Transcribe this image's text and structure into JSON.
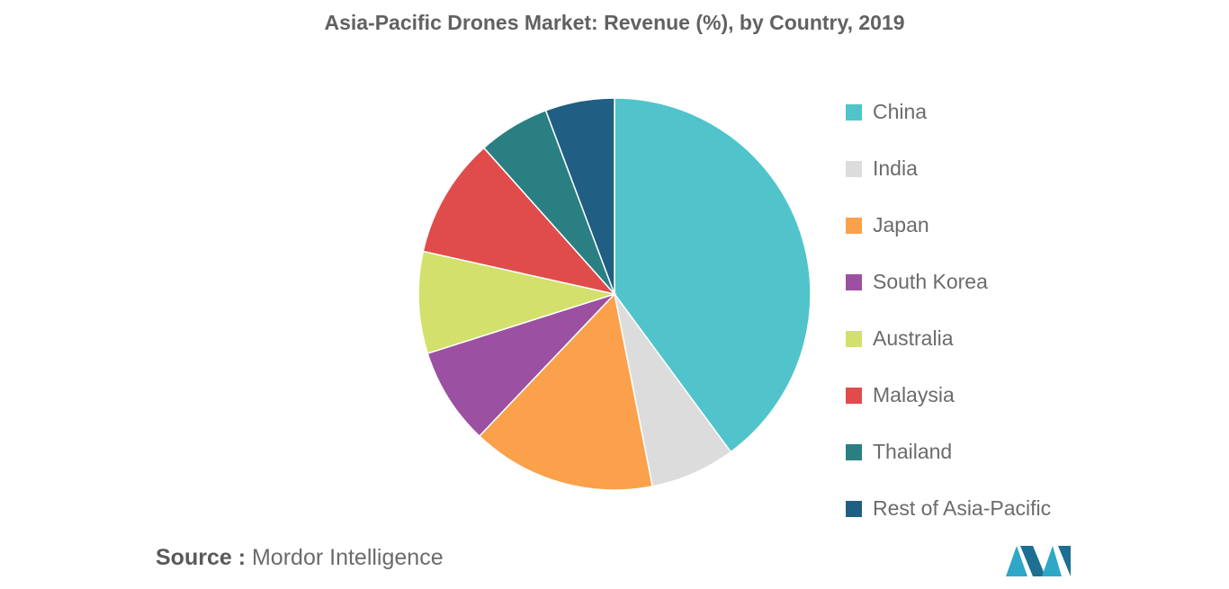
{
  "chart_data": {
    "type": "pie",
    "title": "Asia-Pacific Drones Market: Revenue (%), by Country, 2019",
    "slices": [
      {
        "label": "China",
        "value": 39.9,
        "color": "#50c4ca"
      },
      {
        "label": "India",
        "value": 7.0,
        "color": "#dcdcdc"
      },
      {
        "label": "Japan",
        "value": 15.2,
        "color": "#fba04b"
      },
      {
        "label": "South Korea",
        "value": 8.0,
        "color": "#9c50a1"
      },
      {
        "label": "Australia",
        "value": 8.4,
        "color": "#d3e06b"
      },
      {
        "label": "Malaysia",
        "value": 9.9,
        "color": "#e04c4b"
      },
      {
        "label": "Thailand",
        "value": 5.9,
        "color": "#2a7f82"
      },
      {
        "label": "Rest of Asia-Pacific",
        "value": 5.7,
        "color": "#205e83"
      }
    ],
    "legend_position": "right"
  },
  "source": {
    "prefix": "Source :",
    "text": "Mordor Intelligence"
  }
}
